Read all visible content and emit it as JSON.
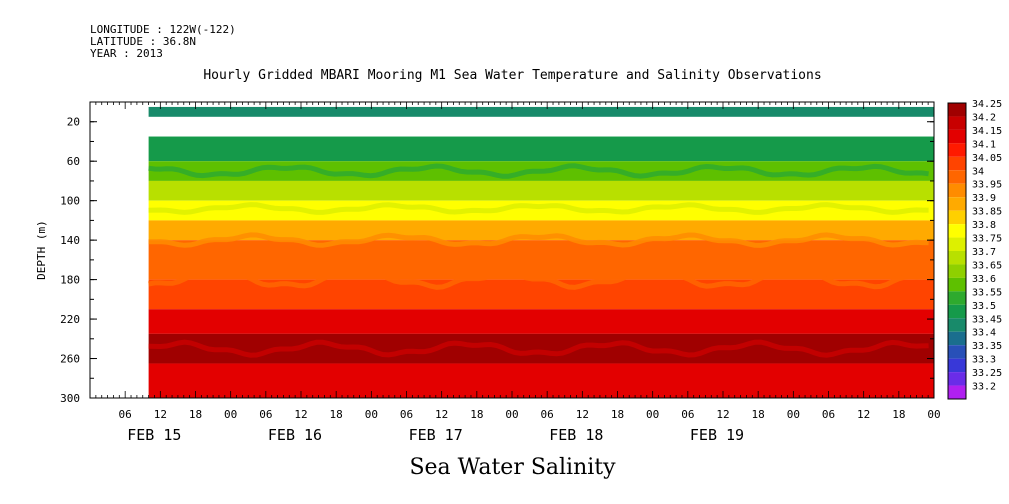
{
  "header": {
    "longitude": "LONGITUDE : 122W(-122)",
    "latitude": "LATITUDE : 36.8N",
    "year": "YEAR : 2013",
    "title": "Hourly Gridded MBARI Mooring M1 Sea Water Temperature and Salinity Observations"
  },
  "footer": {
    "variable": "Sea Water Salinity"
  },
  "chart_data": {
    "type": "heatmap",
    "title": "Hourly Gridded MBARI Mooring M1 Sea Water Temperature and Salinity Observations",
    "xlabel": "",
    "ylabel": "DEPTH (m)",
    "ylim": [
      300,
      0
    ],
    "y_ticks": [
      20,
      60,
      100,
      140,
      180,
      220,
      260,
      300
    ],
    "x_hour_ticks": [
      "06",
      "12",
      "18",
      "00",
      "06",
      "12",
      "18",
      "00",
      "06",
      "12",
      "18",
      "00",
      "06",
      "12",
      "18",
      "00",
      "06",
      "12",
      "18",
      "00",
      "06",
      "12",
      "18",
      "00"
    ],
    "x_day_labels": [
      "FEB 15",
      "FEB 16",
      "FEB 17",
      "FEB 18",
      "FEB 19"
    ],
    "time_range_hours": [
      0,
      144
    ],
    "data_start_hour": 10,
    "colorbar": {
      "levels": [
        "34.25",
        "34.2",
        "34.15",
        "34.1",
        "34.05",
        "34",
        "33.95",
        "33.9",
        "33.85",
        "33.8",
        "33.75",
        "33.7",
        "33.65",
        "33.6",
        "33.55",
        "33.5",
        "33.45",
        "33.4",
        "33.35",
        "33.3",
        "33.25",
        "33.2"
      ],
      "colors": [
        "#a00000",
        "#c80000",
        "#e30000",
        "#ff1a00",
        "#ff4400",
        "#ff6600",
        "#ff8c00",
        "#ffaa00",
        "#ffd000",
        "#ffff00",
        "#ddf000",
        "#b8e000",
        "#8fd000",
        "#5ec000",
        "#2eaa2e",
        "#159a4a",
        "#188a6a",
        "#1a6e8e",
        "#2850b8",
        "#3838d8",
        "#6a2ce8",
        "#b020f0"
      ]
    },
    "depth_profile": [
      {
        "depth_min": 5,
        "depth_max": 15,
        "salinity": 33.45
      },
      {
        "depth_min": 35,
        "depth_max": 60,
        "salinity": 33.5
      },
      {
        "depth_min": 60,
        "depth_max": 80,
        "salinity": 33.6
      },
      {
        "depth_min": 80,
        "depth_max": 100,
        "salinity": 33.7
      },
      {
        "depth_min": 100,
        "depth_max": 120,
        "salinity": 33.8
      },
      {
        "depth_min": 120,
        "depth_max": 140,
        "salinity": 33.9
      },
      {
        "depth_min": 140,
        "depth_max": 180,
        "salinity": 34.0
      },
      {
        "depth_min": 180,
        "depth_max": 210,
        "salinity": 34.05
      },
      {
        "depth_min": 210,
        "depth_max": 235,
        "salinity": 34.15
      },
      {
        "depth_min": 235,
        "depth_max": 265,
        "salinity": 34.25
      },
      {
        "depth_min": 265,
        "depth_max": 300,
        "salinity": 34.15
      }
    ]
  }
}
